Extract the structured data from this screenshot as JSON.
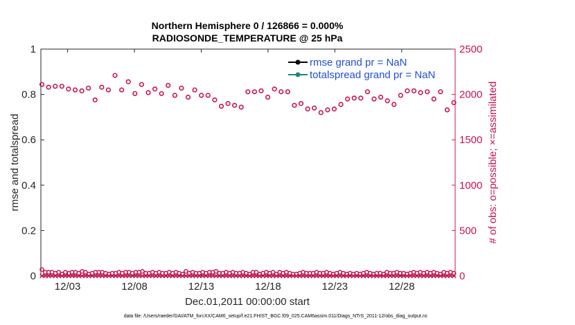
{
  "chart_data": {
    "type": "scatter",
    "title_line1": "Northern Hemisphere 0 / 126866 = 0.000%",
    "title_line2": "RADIOSONDE_TEMPERATURE @ 25 hPa",
    "ylabel_left": "rmse and totalspread",
    "ylabel_right": "# of obs: o=possible; ×=assimilated",
    "xlabel": "Dec.01,2011 00:00:00 start",
    "footnote": "data file: /Users/raeder/DAI/ATM_forcXX/CAM6_setup/f.e21.FHIST_BGC.f09_025.CAM6assim.011/Diags_NTrS_2011-12/obs_diag_output.nc",
    "ylim_left": [
      0,
      1
    ],
    "ylim_right": [
      0,
      2500
    ],
    "xlim": [
      0,
      31
    ],
    "left_ticks": [
      "0",
      "0.2",
      "0.4",
      "0.6",
      "0.8",
      "1"
    ],
    "right_ticks": [
      "0",
      "500",
      "1000",
      "1500",
      "2000",
      "2500"
    ],
    "x_ticks": [
      {
        "x": 2,
        "label": "12/03"
      },
      {
        "x": 7,
        "label": "12/08"
      },
      {
        "x": 12,
        "label": "12/13"
      },
      {
        "x": 17,
        "label": "12/18"
      },
      {
        "x": 22,
        "label": "12/23"
      },
      {
        "x": 27,
        "label": "12/28"
      }
    ],
    "legend": [
      {
        "label": "rmse grand pr = NaN",
        "color": "#000000"
      },
      {
        "label": "totalspread grand pr = NaN",
        "color": "#1a8a80"
      }
    ],
    "legend_position": "top-right",
    "grid": false,
    "possible_color": "#c8124f",
    "possible_obs_high": [
      2110,
      2080,
      2090,
      2090,
      2060,
      2050,
      2040,
      2070,
      1940,
      2080,
      2050,
      2210,
      2050,
      2140,
      2010,
      2110,
      2020,
      2060,
      2010,
      2100,
      1990,
      2070,
      1970,
      2050,
      1990,
      1990,
      1940,
      1870,
      1900,
      1880,
      1860,
      2030,
      2030,
      2040,
      1970,
      2060,
      2030,
      2030,
      1880,
      1900,
      1840,
      1850,
      1800,
      1830,
      1840,
      1890,
      1950,
      1960,
      1960,
      2030,
      1950,
      1970,
      1930,
      1890,
      1990,
      2040,
      2040,
      2020,
      2030,
      1950,
      2030,
      1830,
      1910
    ],
    "possible_obs_low": [
      70,
      40,
      40,
      40,
      30,
      40,
      20,
      40,
      30,
      40,
      40,
      30,
      50,
      40,
      20,
      30,
      40,
      40,
      40,
      30,
      20,
      30,
      30,
      40,
      30,
      40,
      40,
      30,
      40,
      40,
      50,
      30,
      30,
      40,
      30,
      40,
      30,
      30,
      40,
      30,
      40,
      30,
      20,
      50,
      30,
      40,
      30,
      30,
      40,
      30,
      40,
      40,
      50,
      30,
      30,
      40,
      30,
      40,
      30,
      30,
      40,
      30,
      20,
      40,
      40,
      20,
      30,
      40,
      30,
      40,
      20,
      40,
      30,
      40,
      30,
      20,
      20,
      30,
      40,
      30,
      30,
      30,
      40,
      30,
      30,
      40,
      30,
      20,
      30,
      40,
      30,
      20,
      30,
      20,
      30,
      20,
      30,
      40,
      30,
      20,
      30,
      30,
      20,
      40,
      30,
      30,
      40,
      30,
      30,
      20,
      30,
      40,
      30,
      40,
      30,
      40,
      30,
      40,
      30,
      20,
      40,
      30,
      40,
      30
    ],
    "assimilated_count": 124
  }
}
